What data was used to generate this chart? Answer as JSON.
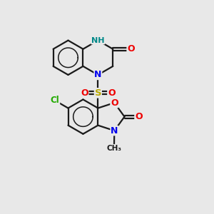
{
  "bg_color": "#e8e8e8",
  "bond_color": "#1a1a1a",
  "atom_colors": {
    "N": "#0000ee",
    "NH": "#008888",
    "O": "#ee0000",
    "S": "#bbaa00",
    "Cl": "#22aa00",
    "C": "#1a1a1a"
  },
  "figsize": [
    3.0,
    3.0
  ],
  "dpi": 100
}
